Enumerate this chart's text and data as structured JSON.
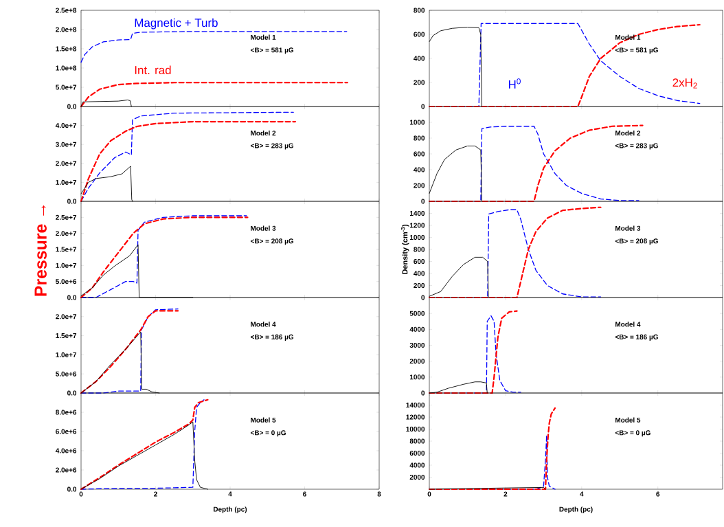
{
  "chart_data": [
    {
      "type": "line",
      "xlim": [
        0,
        8
      ],
      "xticks": [
        0,
        2,
        4,
        6,
        8
      ],
      "ylim": [
        0,
        250000000.0
      ],
      "yticks": [
        {
          "value": 0,
          "label": "0.0"
        },
        {
          "value": 50000000.0,
          "label": "5.0e+7"
        },
        {
          "value": 100000000.0,
          "label": "1.0e+8"
        },
        {
          "value": 150000000.0,
          "label": "1.5e+8"
        },
        {
          "value": 200000000.0,
          "label": "2.0e+8"
        },
        {
          "value": 250000000.0,
          "label": "2.5e+8"
        }
      ],
      "tick_labels": "y",
      "annotations": [
        "Model 1",
        "<B> = 581 µG"
      ],
      "series": [
        {
          "name": "Magnetic + Turb",
          "color": "#0000ff",
          "line_style": "dashed",
          "x": [
            0,
            0.1,
            0.3,
            0.6,
            1.0,
            1.33,
            1.38,
            1.6,
            3,
            7.13
          ],
          "values": [
            115000000.0,
            135000000.0,
            155000000.0,
            168000000.0,
            173000000.0,
            174000000.0,
            190000000.0,
            193000000.0,
            195000000.0,
            195000000.0
          ]
        },
        {
          "name": "Int. rad",
          "color": "#ff0000",
          "line_style": "dashed",
          "x": [
            0,
            0.2,
            0.5,
            1.0,
            1.5,
            2.5,
            7.15
          ],
          "values": [
            0,
            25000000.0,
            45000000.0,
            57000000.0,
            60000000.0,
            62000000.0,
            62000000.0
          ]
        },
        {
          "color": "#000000",
          "line_style": "solid",
          "x": [
            0,
            0.05,
            0.5,
            1.0,
            1.25,
            1.32,
            1.35
          ],
          "values": [
            0,
            12000000.0,
            13000000.0,
            14000000.0,
            17000000.0,
            15000000.0,
            0
          ]
        }
      ]
    },
    {
      "type": "line",
      "xlim": [
        0,
        7.7
      ],
      "xticks": [
        0,
        2,
        4,
        6
      ],
      "ylim": [
        0,
        800
      ],
      "yticks": [
        0,
        200,
        400,
        600,
        800
      ],
      "tick_labels": "y",
      "annotations": [
        "Model 1",
        "<B> = 581 µG"
      ],
      "series": [
        {
          "name": "H$^{0}$",
          "color": "#0000ff",
          "line_style": "dashed",
          "x": [
            0,
            1.3,
            1.36,
            3.9,
            4.2,
            4.5,
            5.0,
            5.5,
            6.0,
            6.5,
            7.1
          ],
          "values": [
            0,
            0,
            690,
            690,
            520,
            380,
            250,
            150,
            90,
            50,
            25
          ]
        },
        {
          "name": "2xH$_{2}$",
          "color": "#ff0000",
          "line_style": "dashed",
          "x": [
            0,
            3.9,
            4.0,
            4.2,
            4.5,
            5.0,
            5.5,
            6.0,
            6.5,
            7.1
          ],
          "values": [
            0,
            0,
            80,
            250,
            400,
            530,
            600,
            640,
            665,
            680
          ]
        },
        {
          "color": "#000000",
          "line_style": "solid",
          "x": [
            0,
            0.1,
            0.3,
            0.6,
            1.0,
            1.3,
            1.35,
            1.38
          ],
          "values": [
            540,
            590,
            630,
            650,
            660,
            655,
            600,
            0
          ]
        }
      ]
    },
    {
      "type": "line",
      "xlim": [
        0,
        8
      ],
      "xticks": [
        0,
        2,
        4,
        6,
        8
      ],
      "ylim": [
        0,
        50000000.0
      ],
      "yticks": [
        {
          "value": 0,
          "label": "0.0"
        },
        {
          "value": 10000000.0,
          "label": "1.0e+7"
        },
        {
          "value": 20000000.0,
          "label": "2.0e+7"
        },
        {
          "value": 30000000.0,
          "label": "3.0e+7"
        },
        {
          "value": 40000000.0,
          "label": "4.0e+7"
        }
      ],
      "tick_labels": "y",
      "annotations": [
        "Model 2",
        "<B> = 283 µG"
      ],
      "series": [
        {
          "color": "#0000ff",
          "line_style": "dashed",
          "x": [
            0,
            0.2,
            0.5,
            0.9,
            1.2,
            1.35,
            1.38,
            1.6,
            2.5,
            5.7
          ],
          "values": [
            0,
            7000000.0,
            15000000.0,
            23000000.0,
            26000000.0,
            24500000.0,
            43000000.0,
            45000000.0,
            46500000.0,
            47000000.0
          ]
        },
        {
          "color": "#ff0000",
          "line_style": "dashed",
          "x": [
            0,
            0.2,
            0.5,
            0.8,
            1.2,
            1.5,
            2,
            3,
            5.75
          ],
          "values": [
            0,
            12000000.0,
            25000000.0,
            32000000.0,
            37000000.0,
            39500000.0,
            41000000.0,
            42000000.0,
            42000000.0
          ]
        },
        {
          "color": "#000000",
          "line_style": "solid",
          "x": [
            0,
            0.2,
            0.4,
            0.8,
            1.1,
            1.3,
            1.33,
            1.36,
            1.38
          ],
          "values": [
            4000000.0,
            10000000.0,
            12000000.0,
            13000000.0,
            14500000.0,
            18000000.0,
            18500000.0,
            1000000.0,
            0
          ]
        }
      ]
    },
    {
      "type": "line",
      "xlim": [
        0,
        7.7
      ],
      "xticks": [
        0,
        2,
        4,
        6
      ],
      "ylim": [
        0,
        1200
      ],
      "yticks": [
        0,
        200,
        400,
        600,
        800,
        1000
      ],
      "tick_labels": "y",
      "annotations": [
        "Model 2",
        "<B> = 283 µG"
      ],
      "series": [
        {
          "color": "#0000ff",
          "line_style": "dashed",
          "x": [
            0,
            1.35,
            1.38,
            1.6,
            2,
            2.75,
            2.85,
            3.0,
            3.3,
            3.6,
            4.0,
            4.5,
            5.0,
            5.5
          ],
          "values": [
            0,
            0,
            920,
            940,
            950,
            950,
            850,
            600,
            350,
            200,
            100,
            30,
            10,
            10
          ]
        },
        {
          "color": "#ff0000",
          "line_style": "dashed",
          "x": [
            0,
            2.75,
            2.85,
            3.0,
            3.3,
            3.7,
            4.2,
            4.8,
            5.6
          ],
          "values": [
            0,
            0,
            200,
            420,
            640,
            800,
            900,
            950,
            960
          ]
        },
        {
          "color": "#000000",
          "line_style": "solid",
          "x": [
            0,
            0.2,
            0.4,
            0.7,
            1.0,
            1.2,
            1.35,
            1.38
          ],
          "values": [
            100,
            350,
            530,
            650,
            700,
            700,
            650,
            0
          ]
        }
      ]
    },
    {
      "type": "line",
      "xlim": [
        0,
        8
      ],
      "xticks": [
        0,
        2,
        4,
        6,
        8
      ],
      "ylim": [
        0,
        30000000.0
      ],
      "yticks": [
        {
          "value": 0,
          "label": "0.0"
        },
        {
          "value": 5000000.0,
          "label": "5.0e+6"
        },
        {
          "value": 10000000.0,
          "label": "1.0e+7"
        },
        {
          "value": 15000000.0,
          "label": "1.5e+7"
        },
        {
          "value": 20000000.0,
          "label": "2.0e+7"
        },
        {
          "value": 25000000.0,
          "label": "2.5e+7"
        }
      ],
      "tick_labels": "y",
      "ylabel": "Pressure →",
      "annotations": [
        "Model 3",
        "<B> = 208 µG"
      ],
      "series": [
        {
          "color": "#0000ff",
          "line_style": "dashed",
          "x": [
            0,
            0.4,
            0.8,
            1.2,
            1.4,
            1.5,
            1.53,
            1.7,
            2.2,
            3,
            4.44
          ],
          "values": [
            0,
            0,
            2500000.0,
            5000000.0,
            5000000.0,
            4500000.0,
            21000000.0,
            23500000.0,
            25000000.0,
            25500000.0,
            25500000.0
          ]
        },
        {
          "color": "#ff0000",
          "line_style": "dashed",
          "x": [
            0,
            0.3,
            0.6,
            1.0,
            1.4,
            1.7,
            2.2,
            3,
            4.47
          ],
          "values": [
            0,
            3000000.0,
            8000000.0,
            14000000.0,
            20000000.0,
            23000000.0,
            24500000.0,
            25000000.0,
            25000000.0
          ]
        },
        {
          "color": "#000000",
          "line_style": "solid",
          "x": [
            0,
            0.3,
            0.6,
            0.9,
            1.3,
            1.5,
            1.53,
            1.56,
            3.0
          ],
          "values": [
            500000.0,
            3000000.0,
            7000000.0,
            9800000.0,
            13000000.0,
            16000000.0,
            16500000.0,
            0,
            0
          ]
        }
      ]
    },
    {
      "type": "line",
      "xlim": [
        0,
        7.7
      ],
      "xticks": [
        0,
        2,
        4,
        6
      ],
      "ylim": [
        0,
        1600
      ],
      "yticks": [
        0,
        200,
        400,
        600,
        800,
        1000,
        1200,
        1400
      ],
      "tick_labels": "y",
      "ylabel": "Density (cm$^{-3}$)",
      "annotations": [
        "Model 3",
        "<B> = 208 µG"
      ],
      "series": [
        {
          "color": "#0000ff",
          "line_style": "dashed",
          "x": [
            0,
            1.53,
            1.56,
            1.8,
            2.1,
            2.3,
            2.4,
            2.6,
            2.8,
            3.1,
            3.5,
            4.0,
            4.5
          ],
          "values": [
            0,
            0,
            1390,
            1430,
            1460,
            1460,
            1300,
            800,
            450,
            200,
            60,
            10,
            10
          ]
        },
        {
          "color": "#ff0000",
          "line_style": "dashed",
          "x": [
            0,
            2.3,
            2.45,
            2.6,
            2.8,
            3.1,
            3.5,
            4.0,
            4.5
          ],
          "values": [
            0,
            0,
            400,
            800,
            1100,
            1320,
            1450,
            1480,
            1500
          ]
        },
        {
          "color": "#000000",
          "line_style": "solid",
          "x": [
            0,
            0.3,
            0.6,
            0.9,
            1.2,
            1.4,
            1.53,
            1.55
          ],
          "values": [
            20,
            100,
            350,
            550,
            670,
            670,
            600,
            0
          ]
        }
      ]
    },
    {
      "type": "line",
      "xlim": [
        0,
        8
      ],
      "xticks": [
        0,
        2,
        4,
        6,
        8
      ],
      "ylim": [
        0,
        25000000.0
      ],
      "yticks": [
        {
          "value": 0,
          "label": "0.0"
        },
        {
          "value": 5000000.0,
          "label": "5.0e+6"
        },
        {
          "value": 10000000.0,
          "label": "1.0e+7"
        },
        {
          "value": 15000000.0,
          "label": "1.5e+7"
        },
        {
          "value": 20000000.0,
          "label": "2.0e+7"
        }
      ],
      "tick_labels": "y",
      "annotations": [
        "Model 4",
        "<B> = 186 µG"
      ],
      "series": [
        {
          "color": "#0000ff",
          "line_style": "dashed",
          "x": [
            0,
            0.6,
            1.0,
            1.6,
            1.62,
            1.8,
            2.0,
            2.6
          ],
          "values": [
            0,
            0,
            500000.0,
            500000.0,
            16500000.0,
            20000000.0,
            21800000.0,
            22000000.0
          ]
        },
        {
          "color": "#ff0000",
          "line_style": "dashed",
          "x": [
            0,
            0.4,
            0.8,
            1.2,
            1.6,
            1.8,
            2.0,
            2.6
          ],
          "values": [
            0,
            3000000.0,
            7000000.0,
            11500000.0,
            16500000.0,
            20000000.0,
            21500000.0,
            21500000.0
          ]
        },
        {
          "color": "#000000",
          "line_style": "solid",
          "x": [
            0,
            0.4,
            0.8,
            1.2,
            1.6,
            1.63,
            1.75,
            1.9,
            2.1
          ],
          "values": [
            0,
            3000000.0,
            7500000.0,
            11500000.0,
            16000000.0,
            1000000.0,
            1000000.0,
            300000.0,
            0
          ]
        }
      ]
    },
    {
      "type": "line",
      "xlim": [
        0,
        7.7
      ],
      "xticks": [
        0,
        2,
        4,
        6
      ],
      "ylim": [
        0,
        6000
      ],
      "yticks": [
        0,
        1000,
        2000,
        3000,
        4000,
        5000
      ],
      "tick_labels": "y",
      "annotations": [
        "Model 4",
        "<B> = 186 µG"
      ],
      "series": [
        {
          "color": "#0000ff",
          "line_style": "dashed",
          "x": [
            0,
            1.5,
            1.52,
            1.62,
            1.7,
            1.75,
            1.85,
            2.0,
            2.2,
            2.4
          ],
          "values": [
            0,
            0,
            4500,
            4850,
            4500,
            2500,
            800,
            150,
            50,
            50
          ]
        },
        {
          "color": "#ff0000",
          "line_style": "dashed",
          "x": [
            0,
            1.65,
            1.7,
            1.8,
            1.9,
            2.1,
            2.3
          ],
          "values": [
            0,
            0,
            1000,
            3500,
            4700,
            5100,
            5150
          ]
        },
        {
          "color": "#000000",
          "line_style": "solid",
          "x": [
            0,
            0.2,
            0.5,
            0.9,
            1.2,
            1.35,
            1.5,
            1.52
          ],
          "values": [
            0,
            50,
            300,
            550,
            700,
            700,
            630,
            0
          ]
        }
      ]
    },
    {
      "type": "line",
      "xlim": [
        0,
        8
      ],
      "xticks": [
        0,
        2,
        4,
        6,
        8
      ],
      "ylim": [
        0,
        10000000.0
      ],
      "yticks": [
        {
          "value": 0,
          "label": "0.0"
        },
        {
          "value": 2000000.0,
          "label": "2.0e+6"
        },
        {
          "value": 4000000.0,
          "label": "4.0e+6"
        },
        {
          "value": 6000000.0,
          "label": "6.0e+6"
        },
        {
          "value": 8000000.0,
          "label": "8.0e+6"
        }
      ],
      "xlabel": "Depth (pc)",
      "annotations": [
        "Model 5",
        "<B> = 0 µG"
      ],
      "series": [
        {
          "color": "#0000ff",
          "line_style": "dashed",
          "x": [
            0,
            1,
            2,
            3.0,
            3.05,
            3.1,
            3.2,
            3.3
          ],
          "values": [
            0,
            100000.0,
            100000.0,
            200000.0,
            6000000.0,
            8500000.0,
            9000000.0,
            9300000.0
          ]
        },
        {
          "color": "#ff0000",
          "line_style": "dashed",
          "x": [
            0,
            0.5,
            1,
            1.5,
            2,
            2.5,
            2.9,
            3.0,
            3.05,
            3.15,
            3.4
          ],
          "values": [
            0,
            1200000.0,
            2500000.0,
            3700000.0,
            4900000.0,
            5900000.0,
            6800000.0,
            7200000.0,
            8500000.0,
            9000000.0,
            9300000.0
          ]
        },
        {
          "color": "#000000",
          "line_style": "solid",
          "x": [
            0,
            0.5,
            1,
            1.5,
            2,
            2.5,
            2.9,
            3.0,
            3.05,
            3.1,
            3.2,
            3.4
          ],
          "values": [
            0,
            1100000.0,
            2400000.0,
            3500000.0,
            4600000.0,
            5700000.0,
            6700000.0,
            7000000.0,
            3000000.0,
            1000000.0,
            200000.0,
            0
          ]
        }
      ]
    },
    {
      "type": "line",
      "xlim": [
        0,
        7.7
      ],
      "xticks": [
        0,
        2,
        4,
        6
      ],
      "ylim": [
        0,
        16000
      ],
      "yticks": [
        2000,
        4000,
        6000,
        8000,
        10000,
        12000,
        14000
      ],
      "xlabel": "Depth (pc)",
      "annotations": [
        "Model 5",
        "<B> = 0 µG"
      ],
      "series": [
        {
          "color": "#0000ff",
          "line_style": "dashed",
          "x": [
            0,
            2.8,
            3.0,
            3.05,
            3.08,
            3.1,
            3.15,
            3.3
          ],
          "values": [
            0,
            0,
            500,
            5000,
            9000,
            2000,
            500,
            0
          ]
        },
        {
          "color": "#ff0000",
          "line_style": "dashed",
          "x": [
            0,
            3.05,
            3.08,
            3.12,
            3.15,
            3.2,
            3.3
          ],
          "values": [
            0,
            0,
            5000,
            9000,
            11000,
            12500,
            13500
          ]
        },
        {
          "color": "#000000",
          "line_style": "solid",
          "x": [
            0,
            0.9,
            1.9,
            3.0,
            3.05
          ],
          "values": [
            0,
            100,
            200,
            300,
            0
          ]
        }
      ]
    }
  ]
}
